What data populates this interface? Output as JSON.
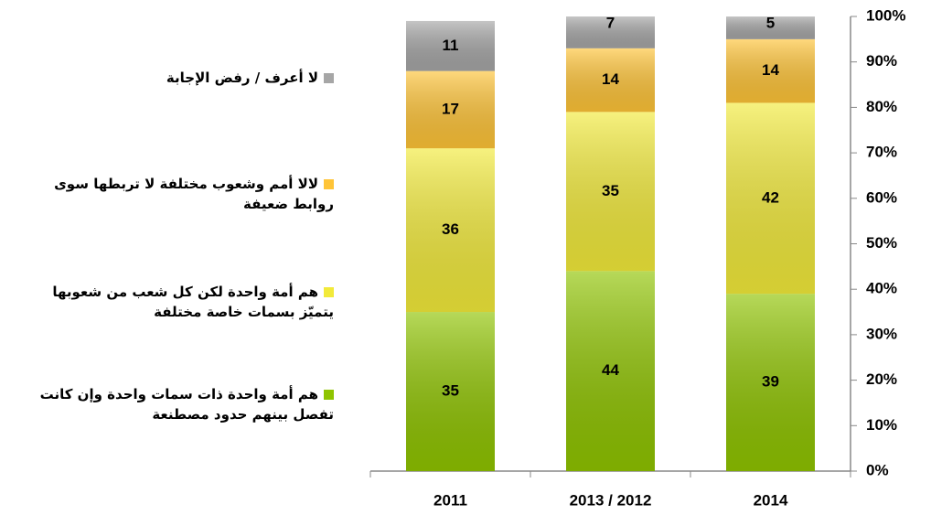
{
  "chart_data": {
    "type": "stacked_bar",
    "categories": [
      "2011",
      "2013 / 2012",
      "2014"
    ],
    "series": [
      {
        "name": "هم أمة واحدة ذات سمات واحدة وإن كانت تفصل بينهم حدود مصطنعة",
        "color": "#8fc400",
        "values": [
          35,
          44,
          39
        ]
      },
      {
        "name": "هم أمة واحدة لكن كل شعب من شعوبها يتميّز بسمات خاصة مختلفة",
        "color": "#f2ea3a",
        "values": [
          36,
          35,
          42
        ]
      },
      {
        "name": "لالا أمم وشعوب مختلفة لا تربطها سوى روابط ضعيفة",
        "color": "#ffc437",
        "values": [
          17,
          14,
          14
        ]
      },
      {
        "name": "لا أعرف /  رفض الإجابة",
        "color": "#a6a6a6",
        "values": [
          11,
          7,
          5
        ]
      }
    ],
    "ylim": [
      0,
      100
    ],
    "yticks": [
      {
        "value": 0,
        "label": "0%"
      },
      {
        "value": 10,
        "label": "10%"
      },
      {
        "value": 20,
        "label": "20%"
      },
      {
        "value": 30,
        "label": "30%"
      },
      {
        "value": 40,
        "label": "40%"
      },
      {
        "value": 50,
        "label": "50%"
      },
      {
        "value": 60,
        "label": "60%"
      },
      {
        "value": 70,
        "label": "70%"
      },
      {
        "value": 80,
        "label": "80%"
      },
      {
        "value": 90,
        "label": "90%"
      },
      {
        "value": 100,
        "label": "100%"
      }
    ]
  }
}
